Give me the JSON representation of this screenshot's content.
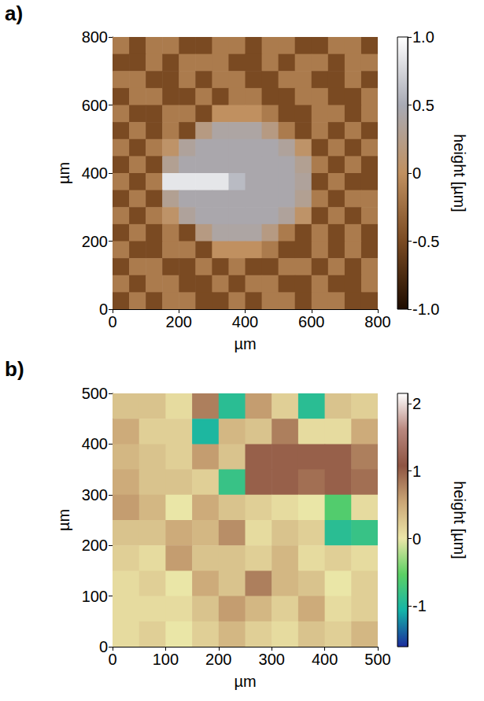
{
  "chart_data": [
    {
      "type": "heatmap",
      "title": "a)",
      "x_label": "µm",
      "y_label": "µm",
      "colorbar_label": "height [µm]",
      "xlim": [
        0,
        800
      ],
      "ylim": [
        0,
        800
      ],
      "xticks": [
        0,
        200,
        400,
        600,
        800
      ],
      "yticks": [
        0,
        200,
        400,
        600,
        800
      ],
      "zlim": [
        -1,
        1
      ],
      "zticks": [
        {
          "value": -1,
          "label": "-1.0"
        },
        -0.5,
        0,
        0.5,
        {
          "value": 1,
          "label": "1.0"
        }
      ],
      "x": [
        25,
        75,
        125,
        175,
        225,
        275,
        325,
        375,
        425,
        475,
        525,
        575,
        625,
        675,
        725,
        775
      ],
      "y": [
        775,
        725,
        675,
        625,
        575,
        525,
        475,
        425,
        375,
        325,
        275,
        225,
        175,
        125,
        75,
        25
      ],
      "z": [
        [
          -0.15,
          -0.5,
          -0.15,
          -0.15,
          -0.5,
          -0.5,
          -0.15,
          -0.15,
          -0.5,
          -0.15,
          -0.15,
          -0.5,
          -0.5,
          -0.15,
          -0.15,
          -0.5
        ],
        [
          -0.5,
          -0.5,
          -0.15,
          -0.5,
          -0.15,
          -0.15,
          -0.15,
          -0.5,
          -0.5,
          -0.15,
          -0.5,
          -0.15,
          -0.15,
          -0.5,
          -0.15,
          -0.15
        ],
        [
          -0.15,
          -0.15,
          -0.5,
          -0.5,
          -0.15,
          -0.5,
          -0.15,
          -0.15,
          -0.5,
          -0.5,
          -0.15,
          -0.15,
          -0.5,
          -0.5,
          -0.15,
          -0.5
        ],
        [
          -0.5,
          -0.15,
          -0.15,
          -0.5,
          -0.5,
          -0.15,
          -0.5,
          -0.15,
          -0.15,
          -0.5,
          -0.5,
          -0.15,
          -0.15,
          -0.5,
          -0.5,
          -0.15
        ],
        [
          -0.15,
          -0.5,
          -0.5,
          -0.15,
          -0.15,
          -0.5,
          0,
          0,
          0,
          -0.15,
          -0.5,
          -0.5,
          -0.15,
          -0.15,
          -0.5,
          -0.15
        ],
        [
          -0.5,
          -0.15,
          -0.5,
          -0.15,
          -0.5,
          0.2,
          0.4,
          0.4,
          0.4,
          0.2,
          -0.15,
          -0.5,
          -0.15,
          -0.5,
          -0.15,
          -0.5
        ],
        [
          -0.15,
          -0.5,
          -0.15,
          0.05,
          0.35,
          0.45,
          0.45,
          0.45,
          0.45,
          0.45,
          0.35,
          0.05,
          -0.5,
          -0.15,
          -0.5,
          -0.15
        ],
        [
          -0.5,
          -0.15,
          -0.5,
          0.3,
          0.45,
          0.45,
          0.45,
          0.45,
          0.45,
          0.45,
          0.45,
          0.3,
          -0.15,
          -0.5,
          -0.15,
          -0.5
        ],
        [
          -0.15,
          -0.5,
          -0.15,
          0.85,
          0.85,
          0.85,
          0.85,
          0.6,
          0.45,
          0.45,
          0.45,
          0.35,
          -0.5,
          -0.15,
          -0.5,
          -0.5
        ],
        [
          -0.5,
          -0.15,
          -0.5,
          0.3,
          0.45,
          0.45,
          0.45,
          0.45,
          0.45,
          0.45,
          0.45,
          0.3,
          -0.15,
          -0.5,
          -0.15,
          -0.15
        ],
        [
          -0.15,
          -0.5,
          -0.15,
          0.05,
          0.35,
          0.45,
          0.45,
          0.45,
          0.45,
          0.45,
          0.35,
          0.05,
          -0.5,
          -0.15,
          -0.5,
          -0.15
        ],
        [
          -0.5,
          -0.15,
          -0.5,
          -0.15,
          -0.5,
          0.2,
          0.4,
          0.4,
          0.4,
          0.2,
          -0.15,
          -0.5,
          -0.15,
          -0.5,
          -0.15,
          -0.5
        ],
        [
          -0.15,
          -0.5,
          -0.5,
          -0.15,
          -0.15,
          -0.5,
          0,
          0,
          0,
          -0.15,
          -0.5,
          -0.5,
          -0.15,
          -0.5,
          -0.15,
          -0.5
        ],
        [
          -0.5,
          -0.15,
          -0.15,
          -0.5,
          -0.5,
          -0.15,
          -0.5,
          -0.15,
          -0.5,
          -0.5,
          -0.15,
          -0.15,
          -0.5,
          -0.15,
          -0.5,
          -0.15
        ],
        [
          -0.15,
          -0.5,
          -0.15,
          -0.15,
          -0.5,
          -0.5,
          -0.15,
          -0.5,
          -0.15,
          -0.15,
          -0.5,
          -0.5,
          -0.15,
          -0.5,
          -0.5,
          -0.15
        ],
        [
          -0.5,
          -0.15,
          -0.5,
          -0.15,
          -0.15,
          -0.5,
          -0.5,
          -0.15,
          -0.5,
          -0.15,
          -0.15,
          -0.5,
          -0.15,
          -0.15,
          -0.5,
          -0.5
        ]
      ]
    },
    {
      "type": "heatmap",
      "title": "b)",
      "x_label": "µm",
      "y_label": "µm",
      "colorbar_label": "height [µm]",
      "xlim": [
        0,
        500
      ],
      "ylim": [
        0,
        500
      ],
      "xticks": [
        0,
        100,
        200,
        300,
        400,
        500
      ],
      "yticks": [
        0,
        100,
        200,
        300,
        400,
        500
      ],
      "zlim": [
        -1.6,
        2.15
      ],
      "zticks": [
        -1,
        0,
        1,
        2
      ],
      "x": [
        25,
        75,
        125,
        175,
        225,
        275,
        325,
        375,
        425,
        475
      ],
      "y": [
        475,
        425,
        375,
        325,
        275,
        225,
        175,
        125,
        75,
        25
      ],
      "z": [
        [
          0.3,
          0.3,
          0.1,
          0.8,
          -0.9,
          0.6,
          0.2,
          -0.9,
          0.3,
          0.2
        ],
        [
          0.5,
          0.2,
          0.2,
          -1.0,
          0.4,
          0.3,
          0.8,
          0.1,
          0.1,
          0.5
        ],
        [
          0.4,
          0.3,
          0.2,
          0.6,
          0.3,
          1.0,
          1.0,
          1.0,
          1.0,
          0.8
        ],
        [
          0.5,
          0.3,
          0.3,
          0.2,
          -0.8,
          1.0,
          1.0,
          0.9,
          1.0,
          0.9
        ],
        [
          0.6,
          0.4,
          0.0,
          0.5,
          0.3,
          0.2,
          0.1,
          0.0,
          -0.6,
          0.1
        ],
        [
          0.3,
          0.3,
          0.5,
          0.4,
          0.7,
          0.1,
          0.3,
          0.2,
          -0.9,
          -0.8
        ],
        [
          0.2,
          0.1,
          0.6,
          0.3,
          0.3,
          0.2,
          0.4,
          0.1,
          0.2,
          0.1
        ],
        [
          0.1,
          0.2,
          0.0,
          0.5,
          0.3,
          0.8,
          0.4,
          0.3,
          0.0,
          0.2
        ],
        [
          0.1,
          0.1,
          0.1,
          0.3,
          0.6,
          0.4,
          0.2,
          0.5,
          0.1,
          0.2
        ],
        [
          0.1,
          0.2,
          0.0,
          0.2,
          0.4,
          0.2,
          0.1,
          0.3,
          0.2,
          0.4
        ]
      ]
    }
  ]
}
